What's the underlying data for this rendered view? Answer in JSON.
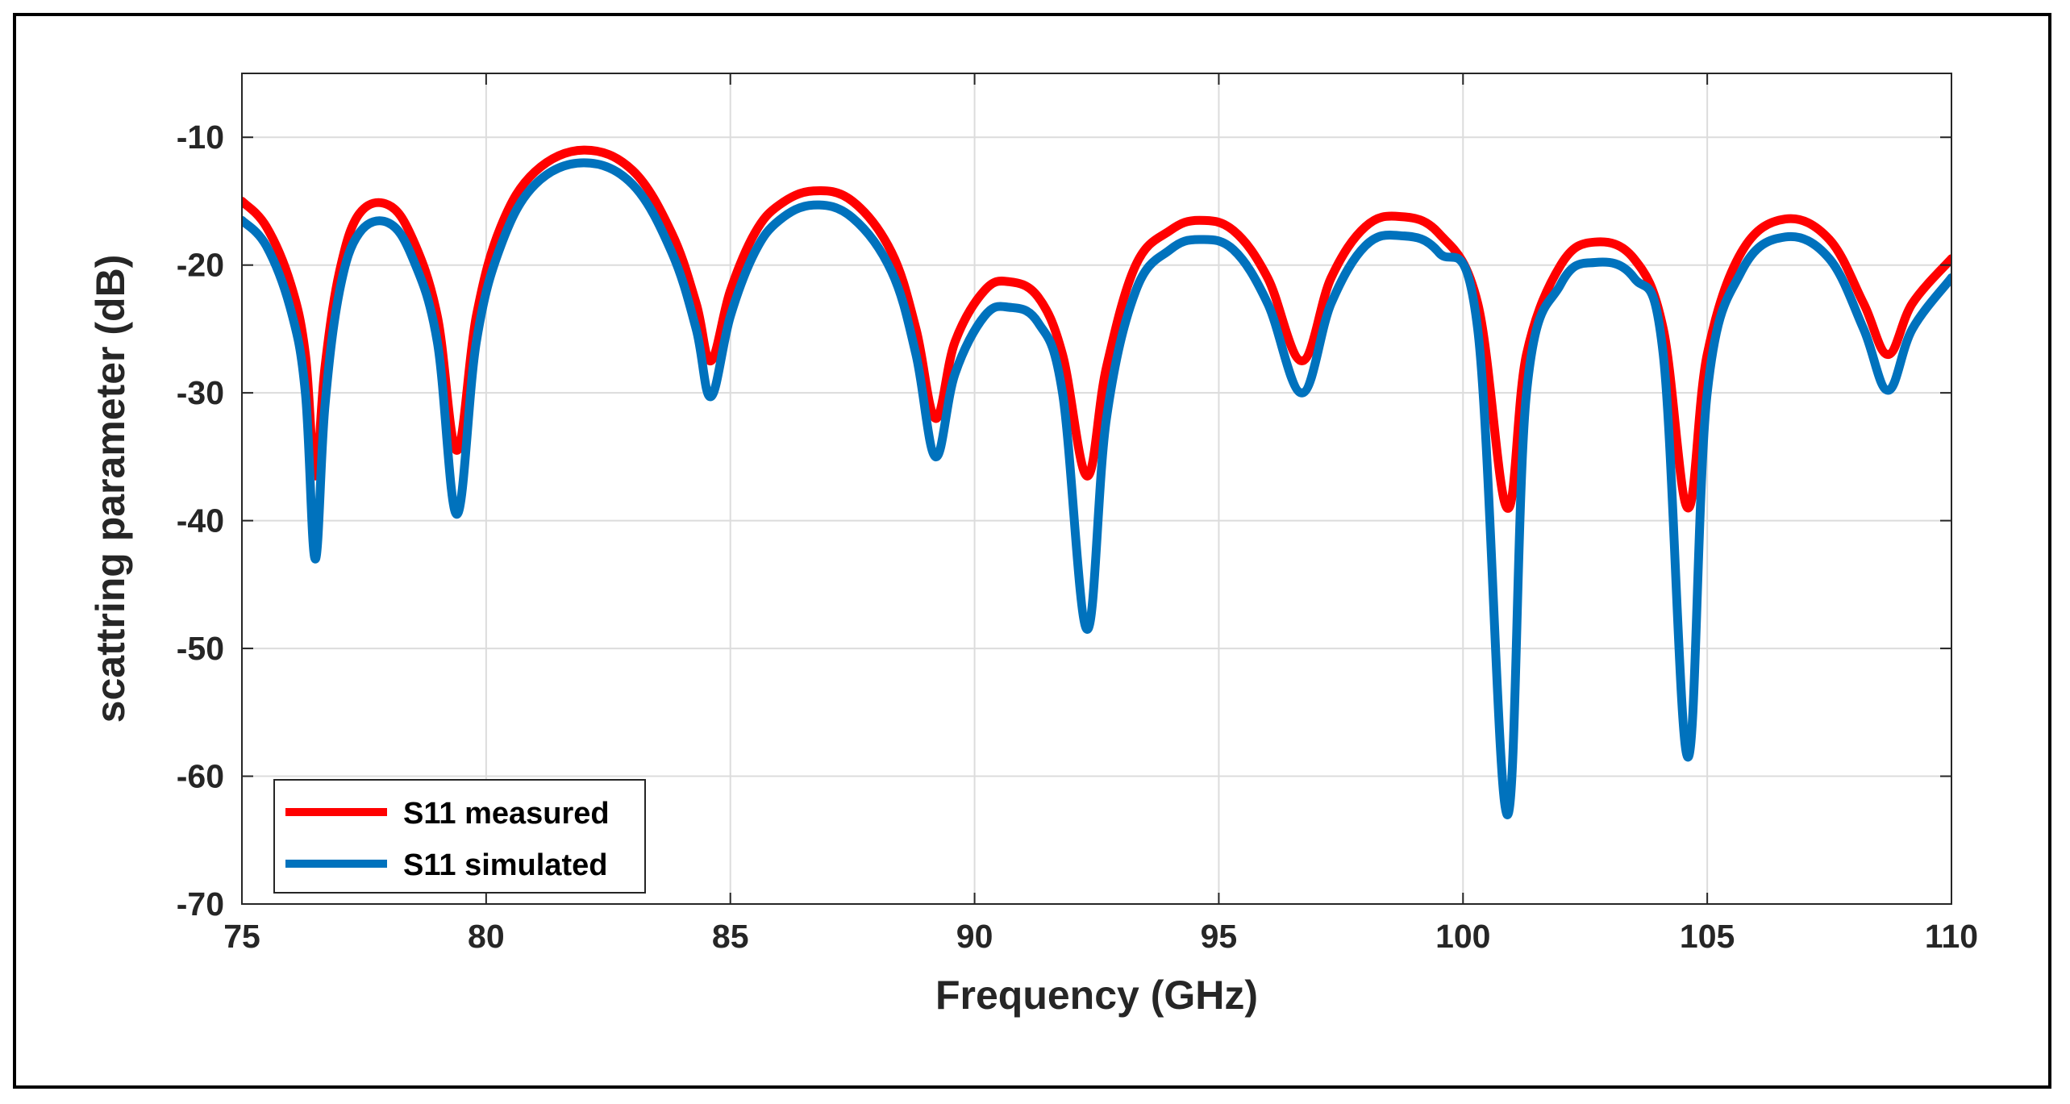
{
  "chart_data": {
    "type": "line",
    "title": "",
    "xlabel": "Frequency (GHz)",
    "ylabel": "scattring parameter (dB)",
    "xlim": [
      75,
      110
    ],
    "ylim": [
      -70,
      -5
    ],
    "xticks": [
      75,
      80,
      85,
      90,
      95,
      100,
      105,
      110
    ],
    "yticks": [
      -70,
      -60,
      -50,
      -40,
      -30,
      -20,
      -10
    ],
    "grid": true,
    "legend_position": "bottom-left",
    "series": [
      {
        "name": "S11 measured",
        "color": "#ff0000",
        "points": [
          [
            75.0,
            -15.0
          ],
          [
            75.5,
            -17.0
          ],
          [
            76.0,
            -21.5
          ],
          [
            76.3,
            -27.0
          ],
          [
            76.5,
            -36.5
          ],
          [
            76.7,
            -28.0
          ],
          [
            77.0,
            -20.5
          ],
          [
            77.4,
            -16.0
          ],
          [
            78.0,
            -15.3
          ],
          [
            78.5,
            -18.0
          ],
          [
            79.0,
            -24.0
          ],
          [
            79.4,
            -34.5
          ],
          [
            79.8,
            -24.0
          ],
          [
            80.3,
            -17.0
          ],
          [
            81.0,
            -12.7
          ],
          [
            82.0,
            -11.0
          ],
          [
            83.0,
            -12.6
          ],
          [
            83.8,
            -17.5
          ],
          [
            84.3,
            -23.0
          ],
          [
            84.6,
            -27.5
          ],
          [
            85.0,
            -22.0
          ],
          [
            85.5,
            -17.5
          ],
          [
            86.0,
            -15.3
          ],
          [
            86.7,
            -14.2
          ],
          [
            87.5,
            -15.0
          ],
          [
            88.3,
            -19.0
          ],
          [
            88.8,
            -25.0
          ],
          [
            89.2,
            -32.0
          ],
          [
            89.6,
            -26.0
          ],
          [
            90.2,
            -22.0
          ],
          [
            90.7,
            -21.3
          ],
          [
            91.3,
            -22.5
          ],
          [
            91.8,
            -27.0
          ],
          [
            92.3,
            -36.5
          ],
          [
            92.7,
            -28.0
          ],
          [
            93.3,
            -20.0
          ],
          [
            94.0,
            -17.3
          ],
          [
            94.6,
            -16.5
          ],
          [
            95.3,
            -17.3
          ],
          [
            96.0,
            -21.0
          ],
          [
            96.7,
            -27.5
          ],
          [
            97.3,
            -21.0
          ],
          [
            98.0,
            -17.0
          ],
          [
            98.7,
            -16.2
          ],
          [
            99.5,
            -17.5
          ],
          [
            100.3,
            -23.0
          ],
          [
            100.9,
            -39.0
          ],
          [
            101.3,
            -27.0
          ],
          [
            102.0,
            -20.0
          ],
          [
            102.7,
            -18.2
          ],
          [
            103.5,
            -19.5
          ],
          [
            104.1,
            -25.0
          ],
          [
            104.6,
            -39.0
          ],
          [
            105.0,
            -27.0
          ],
          [
            105.7,
            -19.0
          ],
          [
            106.6,
            -16.4
          ],
          [
            107.5,
            -18.0
          ],
          [
            108.2,
            -23.0
          ],
          [
            108.7,
            -27.0
          ],
          [
            109.2,
            -23.0
          ],
          [
            110.0,
            -19.5
          ]
        ]
      },
      {
        "name": "S11 simulated",
        "color": "#0072bd",
        "points": [
          [
            75.0,
            -16.5
          ],
          [
            75.5,
            -18.5
          ],
          [
            76.0,
            -23.5
          ],
          [
            76.3,
            -30.0
          ],
          [
            76.5,
            -43.0
          ],
          [
            76.7,
            -31.0
          ],
          [
            77.0,
            -22.0
          ],
          [
            77.4,
            -17.5
          ],
          [
            78.0,
            -16.7
          ],
          [
            78.5,
            -19.5
          ],
          [
            79.0,
            -26.0
          ],
          [
            79.4,
            -39.5
          ],
          [
            79.8,
            -26.0
          ],
          [
            80.3,
            -18.5
          ],
          [
            81.0,
            -13.7
          ],
          [
            82.0,
            -12.0
          ],
          [
            83.0,
            -13.7
          ],
          [
            83.8,
            -19.0
          ],
          [
            84.3,
            -25.0
          ],
          [
            84.6,
            -30.3
          ],
          [
            85.0,
            -24.0
          ],
          [
            85.5,
            -19.0
          ],
          [
            86.0,
            -16.5
          ],
          [
            86.7,
            -15.3
          ],
          [
            87.5,
            -16.3
          ],
          [
            88.3,
            -20.5
          ],
          [
            88.8,
            -27.0
          ],
          [
            89.2,
            -35.0
          ],
          [
            89.6,
            -28.5
          ],
          [
            90.2,
            -24.0
          ],
          [
            90.7,
            -23.3
          ],
          [
            91.3,
            -24.5
          ],
          [
            91.8,
            -30.0
          ],
          [
            92.3,
            -48.5
          ],
          [
            92.7,
            -32.0
          ],
          [
            93.3,
            -22.0
          ],
          [
            94.0,
            -18.8
          ],
          [
            94.6,
            -18.0
          ],
          [
            95.3,
            -18.8
          ],
          [
            96.0,
            -23.0
          ],
          [
            96.7,
            -30.0
          ],
          [
            97.3,
            -23.0
          ],
          [
            98.0,
            -18.5
          ],
          [
            98.7,
            -17.7
          ],
          [
            99.5,
            -19.0
          ],
          [
            100.3,
            -25.0
          ],
          [
            100.9,
            -63.0
          ],
          [
            101.3,
            -30.0
          ],
          [
            102.0,
            -21.5
          ],
          [
            102.7,
            -19.8
          ],
          [
            103.5,
            -21.0
          ],
          [
            104.1,
            -27.0
          ],
          [
            104.6,
            -58.5
          ],
          [
            105.0,
            -30.0
          ],
          [
            105.7,
            -20.5
          ],
          [
            106.6,
            -17.8
          ],
          [
            107.5,
            -19.5
          ],
          [
            108.2,
            -25.0
          ],
          [
            108.7,
            -29.8
          ],
          [
            109.2,
            -25.0
          ],
          [
            110.0,
            -21.0
          ]
        ]
      }
    ]
  }
}
